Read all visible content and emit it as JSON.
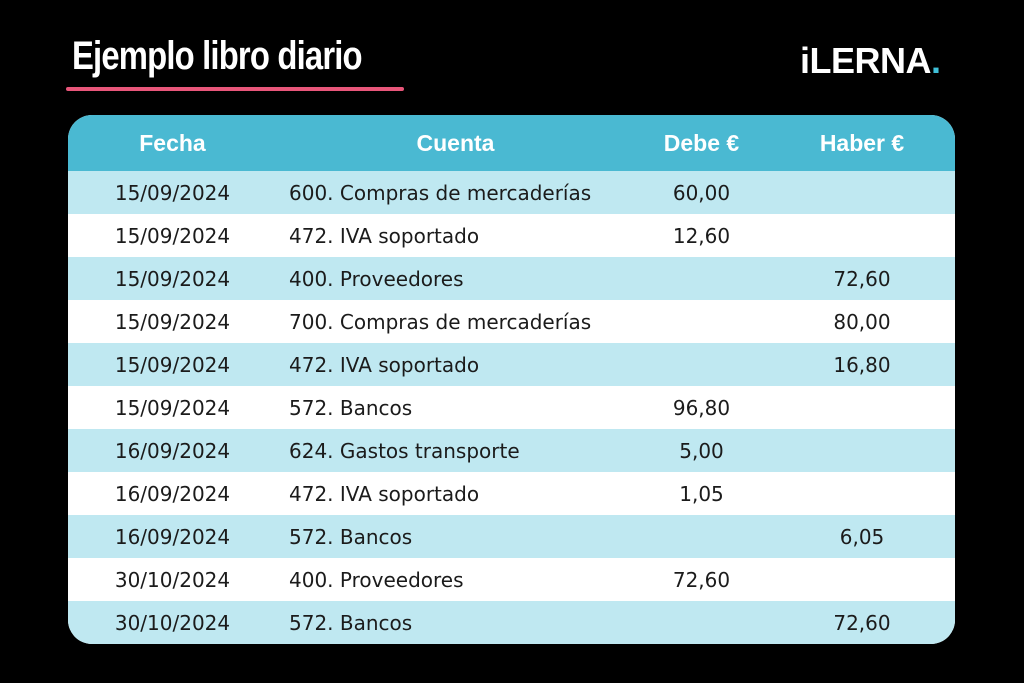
{
  "header": {
    "title": "Ejemplo libro diario",
    "logo_text": "iLERNA",
    "logo_dot": ".",
    "accent_color": "#e8567a",
    "brand_color": "#3fc0d8"
  },
  "table": {
    "header_color": "#4ab9d2",
    "stripe_color": "#bfe8f1",
    "columns": [
      "Fecha",
      "Cuenta",
      "Debe €",
      "Haber €"
    ],
    "rows": [
      [
        "15/09/2024",
        "600. Compras de mercaderías",
        "60,00",
        ""
      ],
      [
        "15/09/2024",
        "472. IVA soportado",
        "12,60",
        ""
      ],
      [
        "15/09/2024",
        "400. Proveedores",
        "",
        "72,60"
      ],
      [
        "15/09/2024",
        "700. Compras de mercaderías",
        "",
        "80,00"
      ],
      [
        "15/09/2024",
        "472. IVA soportado",
        "",
        "16,80"
      ],
      [
        "15/09/2024",
        "572. Bancos",
        "96,80",
        ""
      ],
      [
        "16/09/2024",
        "624. Gastos transporte",
        "5,00",
        ""
      ],
      [
        "16/09/2024",
        "472. IVA soportado",
        "1,05",
        ""
      ],
      [
        "16/09/2024",
        "572. Bancos",
        "",
        "6,05"
      ],
      [
        "30/10/2024",
        "400. Proveedores",
        "72,60",
        ""
      ],
      [
        "30/10/2024",
        "572. Bancos",
        "",
        "72,60"
      ]
    ]
  }
}
